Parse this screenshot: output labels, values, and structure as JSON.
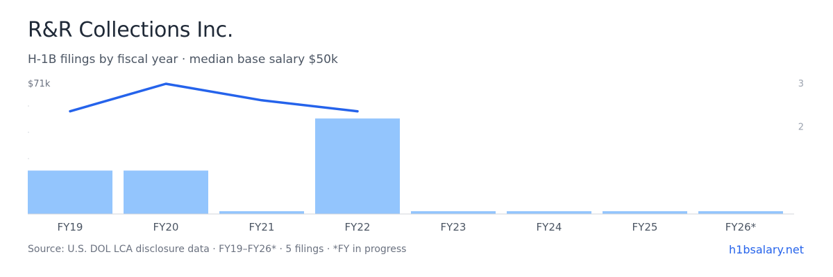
{
  "header": {
    "title": "R&R Collections Inc.",
    "subtitle": "H-1B filings by fiscal year · median base salary $50k"
  },
  "footer": {
    "source": "Source: U.S. DOL LCA disclosure data · FY19–FY26* · 5 filings · *FY in progress",
    "brand": "h1bsalary.net"
  },
  "colors": {
    "bar": "#93c5fd",
    "line": "#2563eb",
    "axis": "#d1d5db",
    "tick_text": "#9ca3af",
    "category_text": "#4b5563"
  },
  "chart_data": {
    "type": "bar",
    "categories": [
      "FY19",
      "FY20",
      "FY21",
      "FY22",
      "FY23",
      "FY24",
      "FY25",
      "FY26*"
    ],
    "series": [
      {
        "type": "bar",
        "axis": "right",
        "values": [
          1,
          1,
          0,
          2.2,
          0,
          0,
          0,
          0
        ]
      },
      {
        "type": "line",
        "axis": "left",
        "values": [
          56,
          71,
          62,
          56,
          null,
          null,
          null,
          null
        ]
      }
    ],
    "left_axis": {
      "top_label": "$71k",
      "ylim": [
        0,
        71
      ]
    },
    "right_axis": {
      "ticks": [
        "3",
        "2"
      ],
      "ylim": [
        0,
        3
      ]
    },
    "grid": false,
    "legend": "none"
  }
}
